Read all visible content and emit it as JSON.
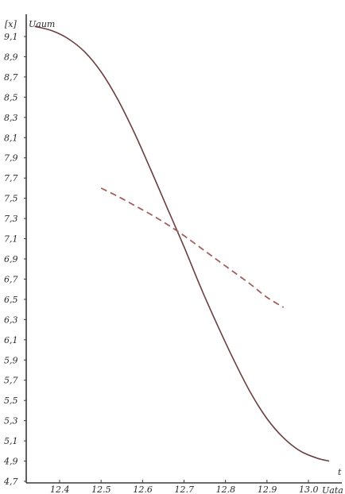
{
  "chart_data": {
    "type": "line",
    "y_unit_label": "[x]",
    "y_axis_label": "Uaum",
    "x_axis_label": "t",
    "x_unit_label": "Uata",
    "y_ticks": [
      "9,1",
      "8,9",
      "8,7",
      "8,5",
      "8,3",
      "8,1",
      "7,9",
      "7,7",
      "7,5",
      "7,3",
      "7,1",
      "6,9",
      "6,7",
      "6,5",
      "6,3",
      "6,1",
      "5,9",
      "5,7",
      "5,5",
      "5,3",
      "5,1",
      "4,9",
      "4,7"
    ],
    "x_ticks": [
      "12.4",
      "12.5",
      "12.6",
      "12.7",
      "12.8",
      "12.9",
      "13.0"
    ],
    "xlim": [
      12.3,
      13.2
    ],
    "ylim": [
      4.7,
      9.3
    ],
    "grid": false,
    "series": [
      {
        "style": "solid",
        "color": "#6b3f3f",
        "x": [
          12.34,
          12.38,
          12.42,
          12.46,
          12.5,
          12.54,
          12.58,
          12.62,
          12.66,
          12.7,
          12.74,
          12.78,
          12.82,
          12.86,
          12.9,
          12.94,
          12.98,
          13.02,
          13.05
        ],
        "y": [
          9.2,
          9.16,
          9.08,
          8.95,
          8.75,
          8.48,
          8.15,
          7.78,
          7.4,
          7.02,
          6.62,
          6.25,
          5.9,
          5.58,
          5.32,
          5.13,
          5.0,
          4.93,
          4.9
        ]
      },
      {
        "style": "dashed",
        "color": "#a06060",
        "x": [
          12.5,
          12.54,
          12.58,
          12.62,
          12.66,
          12.7,
          12.74,
          12.78,
          12.82,
          12.86,
          12.9,
          12.94
        ],
        "y": [
          7.6,
          7.52,
          7.43,
          7.34,
          7.24,
          7.13,
          7.01,
          6.89,
          6.77,
          6.65,
          6.52,
          6.42
        ]
      }
    ]
  }
}
